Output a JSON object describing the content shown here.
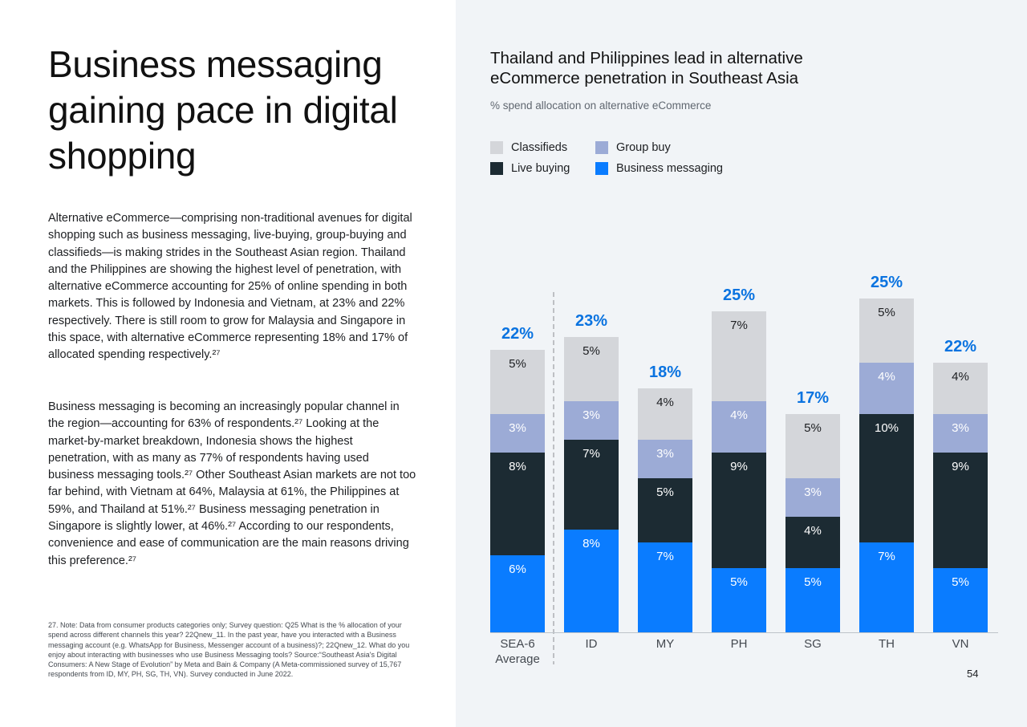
{
  "left": {
    "title": "Business messaging gaining pace in digital shopping",
    "paragraph1": "Alternative eCommerce—comprising non-traditional avenues for digital shopping such as business messaging, live-buying, group-buying and classifieds—is making strides in the Southeast Asian region. Thailand and the Philippines are showing the highest level of penetration, with alternative eCommerce accounting for 25% of online spending in both markets. This is followed by Indonesia and Vietnam, at 23% and 22% respectively. There is still room to grow for Malaysia and Singapore in this space, with alternative eCommerce representing 18% and 17% of allocated spending respectively.²⁷",
    "paragraph2": "Business messaging is becoming an increasingly popular channel in the region—accounting for 63% of respondents.²⁷ Looking at the market-by-market breakdown, Indonesia shows the highest penetration, with as many as 77% of respondents having used business messaging tools.²⁷ Other Southeast Asian markets are not too far behind, with Vietnam at 64%, Malaysia at 61%, the Philippines at 59%, and Thailand at 51%.²⁷ Business messaging penetration in Singapore is slightly lower, at 46%.²⁷ According to our respondents, convenience and ease of communication are the main reasons driving this preference.²⁷",
    "footnote": "27. Note: Data from consumer products categories only; Survey question: Q25 What is the % allocation of your spend across different channels this year? 22Qnew_11. In the past year, have you interacted with a Business messaging account (e.g. WhatsApp for Business, Messenger account of a business)?; 22Qnew_12. What do you enjoy about interacting with businesses who use Business Messaging tools? Source:“Southeast Asia's Digital Consumers: A New Stage of Evolution” by Meta and Bain & Company (A Meta-commissioned survey of 15,767 respondents from ID, MY, PH, SG, TH, VN). Survey conducted in June 2022."
  },
  "page_number": "54",
  "colors": {
    "classifieds": "#d4d6da",
    "group_buy": "#9cabd6",
    "live_buying": "#1c2b33",
    "business_messaging": "#0a7cff",
    "total_label": "#0a73e0"
  },
  "chart_data": {
    "type": "bar",
    "stacked": true,
    "title": "Thailand and Philippines lead in alternative eCommerce penetration in Southeast Asia",
    "subtitle": "% spend allocation on alternative eCommerce",
    "legend_position": "top-left",
    "categories": [
      "SEA-6 Average",
      "ID",
      "MY",
      "PH",
      "SG",
      "TH",
      "VN"
    ],
    "series": [
      {
        "name": "Business messaging",
        "key": "business_messaging",
        "values": [
          6,
          8,
          7,
          5,
          5,
          7,
          5
        ]
      },
      {
        "name": "Live buying",
        "key": "live_buying",
        "values": [
          8,
          7,
          5,
          9,
          4,
          10,
          9
        ]
      },
      {
        "name": "Group buy",
        "key": "group_buy",
        "values": [
          3,
          3,
          3,
          4,
          3,
          4,
          3
        ]
      },
      {
        "name": "Classifieds",
        "key": "classifieds",
        "values": [
          5,
          5,
          4,
          7,
          5,
          5,
          4
        ]
      }
    ],
    "segment_labels": [
      [
        "6%",
        "8%",
        "7%",
        "5%",
        "5%",
        "7%",
        "5%"
      ],
      [
        "8%",
        "7%",
        "5%",
        "9%",
        "4%",
        "10%",
        "9%"
      ],
      [
        "3%",
        "3%",
        "3%",
        "4%",
        "3%",
        "4%",
        "3%"
      ],
      [
        "5%",
        "5%",
        "4%",
        "7%",
        "5%",
        "5%",
        "4%"
      ]
    ],
    "totals": [
      "22%",
      "23%",
      "18%",
      "25%",
      "17%",
      "25%",
      "22%"
    ],
    "ylim": [
      0,
      26
    ]
  }
}
